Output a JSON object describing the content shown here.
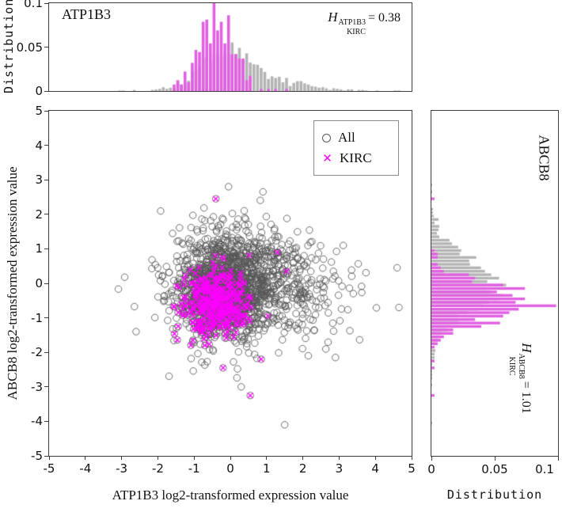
{
  "chart_data": {
    "type": "scatter",
    "seed": 20240707,
    "x_axis": {
      "label": "ATP1B3 log2-transformed expression value",
      "min": -5,
      "max": 5,
      "ticks": [
        -5,
        -4,
        -3,
        -2,
        -1,
        0,
        1,
        2,
        3,
        4,
        5
      ]
    },
    "y_axis": {
      "label": "ABCB8 log2-transformed expression value",
      "min": -5,
      "max": 5,
      "ticks": [
        -5,
        -4,
        -3,
        -2,
        -1,
        0,
        1,
        2,
        3,
        4,
        5
      ]
    },
    "dist_axis": {
      "label": "Distribution",
      "min": 0,
      "max": 0.1,
      "ticks": [
        0,
        0.05,
        0.1
      ]
    },
    "series": [
      {
        "name": "All",
        "marker": "circle",
        "marker_glyph": "○",
        "color": "#565656",
        "hist_color": "#b4b4b4",
        "count": 1600,
        "x_dist": {
          "type": "mixture",
          "components": [
            {
              "w": 0.72,
              "mean": -0.12,
              "sd": 0.72
            },
            {
              "w": 0.28,
              "mean": 1.15,
              "sd": 1.05
            }
          ]
        },
        "y_dist": {
          "type": "normal",
          "mean": -0.05,
          "sd": 0.75
        },
        "outliers": [
          [
            1.5,
            -4.1
          ],
          [
            0.3,
            -3.0
          ],
          [
            0.9,
            2.65
          ],
          [
            2.9,
            -2.15
          ],
          [
            4.6,
            0.45
          ],
          [
            4.65,
            -0.7
          ],
          [
            -0.05,
            2.8
          ],
          [
            2.15,
            -2.1
          ],
          [
            -2.6,
            -1.4
          ]
        ]
      },
      {
        "name": "KIRC",
        "marker": "x",
        "marker_glyph": "✕",
        "color": "#ff00ff",
        "hist_color": "#e160e1",
        "count": 400,
        "x_dist": {
          "type": "normal",
          "mean": -0.38,
          "sd": 0.42
        },
        "y_dist": {
          "type": "normal",
          "mean": -0.55,
          "sd": 0.47
        },
        "outliers": [
          [
            -0.4,
            2.45
          ],
          [
            0.55,
            -3.25
          ],
          [
            -0.2,
            -2.45
          ],
          [
            1.3,
            0.9
          ],
          [
            0.85,
            -2.2
          ],
          [
            1.55,
            0.35
          ]
        ]
      }
    ],
    "top_hist": {
      "title": "ATP1B3",
      "bin_width": 0.1,
      "entropy_label": {
        "var": "H",
        "sup": "ATP1B3",
        "sub": "KIRC",
        "value": "= 0.38"
      }
    },
    "right_hist": {
      "title": "ABCB8",
      "bin_width": 0.1,
      "entropy_label": {
        "var": "H",
        "sup": "ABCB8",
        "sub": "KIRC",
        "value": "= 1.01"
      }
    },
    "legend": {
      "items": [
        "All",
        "KIRC"
      ]
    }
  }
}
